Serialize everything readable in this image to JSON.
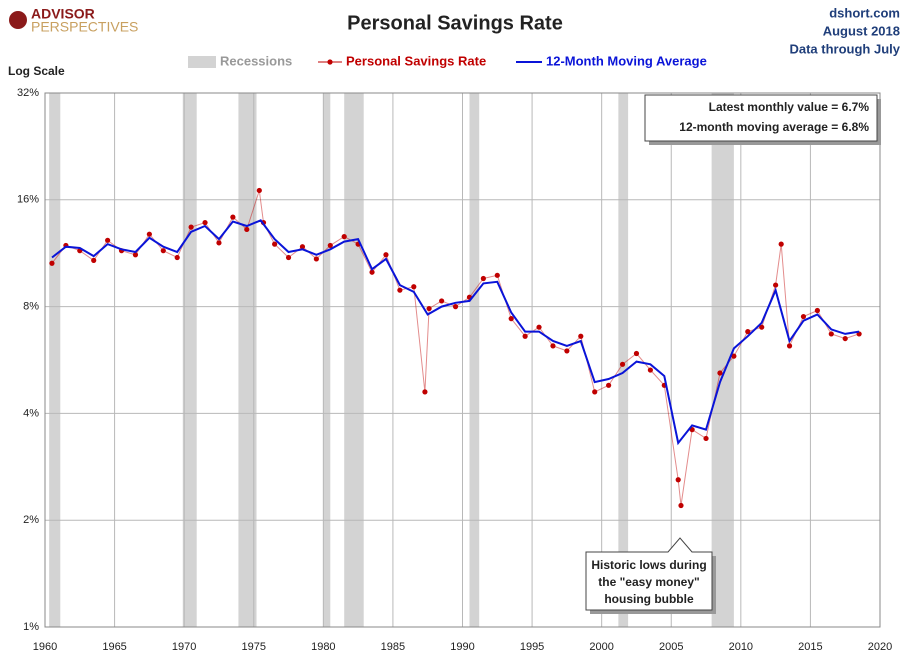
{
  "brand": {
    "line1": "ADVISOR",
    "line2": "PERSPECTIVES"
  },
  "source": {
    "site": "dshort.com",
    "date": "August 2018",
    "note": "Data through July"
  },
  "chart_data": {
    "type": "scatter-line",
    "title": "Personal Savings Rate",
    "y_scale_label": "Log Scale",
    "log_scale": true,
    "grid": true,
    "xlim": [
      1960,
      2020
    ],
    "xticks": [
      1960,
      1965,
      1970,
      1975,
      1980,
      1985,
      1990,
      1995,
      2000,
      2005,
      2010,
      2015,
      2020
    ],
    "ylim": [
      1,
      32
    ],
    "yticks": [
      {
        "value": 1,
        "label": "1%"
      },
      {
        "value": 2,
        "label": "2%"
      },
      {
        "value": 4,
        "label": "4%"
      },
      {
        "value": 8,
        "label": "8%"
      },
      {
        "value": 16,
        "label": "16%"
      },
      {
        "value": 32,
        "label": "32%"
      }
    ],
    "recessions": {
      "name": "Recessions",
      "color": "#d3d3d3",
      "periods": [
        [
          1960.3,
          1961.1
        ],
        [
          1969.9,
          1970.9
        ],
        [
          1973.9,
          1975.2
        ],
        [
          1980.0,
          1980.5
        ],
        [
          1981.5,
          1982.9
        ],
        [
          1990.5,
          1991.2
        ],
        [
          2001.2,
          2001.9
        ],
        [
          2007.9,
          2009.5
        ]
      ]
    },
    "series": [
      {
        "name": "Personal Savings Rate",
        "color": "#c00000",
        "style": "points",
        "x": [
          1960.5,
          1961.5,
          1962.5,
          1963.5,
          1964.5,
          1965.5,
          1966.5,
          1967.5,
          1968.5,
          1969.5,
          1970.5,
          1971.5,
          1972.5,
          1973.5,
          1974.5,
          1975.4,
          1975.7,
          1976.5,
          1977.5,
          1978.5,
          1979.5,
          1980.5,
          1981.5,
          1982.5,
          1983.5,
          1984.5,
          1985.5,
          1986.5,
          1987.3,
          1987.6,
          1988.5,
          1989.5,
          1990.5,
          1991.5,
          1992.5,
          1993.5,
          1994.5,
          1995.5,
          1996.5,
          1997.5,
          1998.5,
          1999.5,
          2000.5,
          2001.5,
          2002.5,
          2003.5,
          2004.5,
          2005.5,
          2005.7,
          2006.5,
          2007.5,
          2008.5,
          2009.5,
          2010.5,
          2011.5,
          2012.5,
          2012.9,
          2013.5,
          2014.5,
          2015.5,
          2016.5,
          2017.5,
          2018.5
        ],
        "values": [
          10.6,
          11.9,
          11.5,
          10.8,
          12.3,
          11.5,
          11.2,
          12.8,
          11.5,
          11.0,
          13.4,
          13.8,
          12.1,
          14.3,
          13.2,
          17.0,
          13.8,
          12.0,
          11.0,
          11.8,
          10.9,
          11.9,
          12.6,
          12.0,
          10.0,
          11.2,
          8.9,
          9.1,
          4.6,
          7.9,
          8.3,
          8.0,
          8.5,
          9.6,
          9.8,
          7.4,
          6.6,
          7.0,
          6.2,
          6.0,
          6.6,
          4.6,
          4.8,
          5.5,
          5.9,
          5.3,
          4.8,
          2.6,
          2.2,
          3.6,
          3.4,
          5.2,
          5.8,
          6.8,
          7.0,
          9.2,
          12.0,
          6.2,
          7.5,
          7.8,
          6.7,
          6.5,
          6.7
        ]
      },
      {
        "name": "12-Month Moving Average",
        "color": "#0a14d8",
        "style": "line",
        "x": [
          1960.5,
          1961.5,
          1962.5,
          1963.5,
          1964.5,
          1965.5,
          1966.5,
          1967.5,
          1968.5,
          1969.5,
          1970.5,
          1971.5,
          1972.5,
          1973.5,
          1974.5,
          1975.5,
          1976.5,
          1977.5,
          1978.5,
          1979.5,
          1980.5,
          1981.5,
          1982.5,
          1983.5,
          1984.5,
          1985.5,
          1986.5,
          1987.5,
          1988.5,
          1989.5,
          1990.5,
          1991.5,
          1992.5,
          1993.5,
          1994.5,
          1995.5,
          1996.5,
          1997.5,
          1998.5,
          1999.5,
          2000.5,
          2001.5,
          2002.5,
          2003.5,
          2004.5,
          2005.5,
          2006.5,
          2007.5,
          2008.5,
          2009.5,
          2010.5,
          2011.5,
          2012.5,
          2013.5,
          2014.5,
          2015.5,
          2016.5,
          2017.5,
          2018.5
        ],
        "values": [
          11.0,
          11.8,
          11.7,
          11.1,
          12.0,
          11.6,
          11.4,
          12.5,
          11.8,
          11.4,
          13.0,
          13.5,
          12.4,
          13.9,
          13.5,
          14.0,
          12.4,
          11.4,
          11.6,
          11.2,
          11.6,
          12.2,
          12.4,
          10.2,
          10.9,
          9.2,
          8.8,
          7.6,
          8.0,
          8.2,
          8.3,
          9.3,
          9.4,
          7.7,
          6.8,
          6.8,
          6.4,
          6.2,
          6.4,
          4.9,
          5.0,
          5.2,
          5.6,
          5.5,
          5.1,
          3.3,
          3.7,
          3.6,
          4.9,
          6.1,
          6.6,
          7.2,
          8.9,
          6.4,
          7.3,
          7.6,
          6.9,
          6.7,
          6.8
        ]
      }
    ],
    "info_box": [
      "Latest monthly value = 6.7%",
      "12-month moving average = 6.8%"
    ],
    "annotation": [
      "Historic lows during",
      "the \"easy money\"",
      "housing bubble"
    ]
  }
}
